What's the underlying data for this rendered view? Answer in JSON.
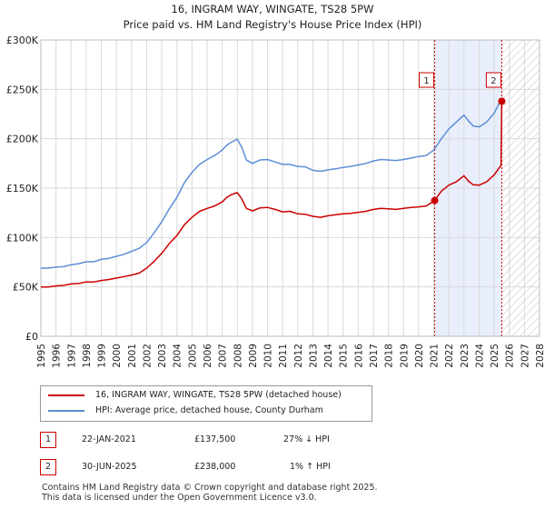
{
  "chart_data": {
    "type": "line",
    "title": "16, INGRAM WAY, WINGATE, TS28 5PW",
    "subtitle": "Price paid vs. HM Land Registry's House Price Index (HPI)",
    "xlabel": "",
    "ylabel": "",
    "xlim": [
      1995,
      2028
    ],
    "ylim": [
      0,
      300000
    ],
    "y_ticks": [
      0,
      50000,
      100000,
      150000,
      200000,
      250000,
      300000
    ],
    "y_tick_labels": [
      "£0",
      "£50K",
      "£100K",
      "£150K",
      "£200K",
      "£250K",
      "£300K"
    ],
    "x_tick_labels": [
      "1995",
      "1996",
      "1997",
      "1998",
      "1999",
      "2000",
      "2001",
      "2002",
      "2003",
      "2004",
      "2005",
      "2006",
      "2007",
      "2008",
      "2009",
      "2010",
      "2011",
      "2012",
      "2013",
      "2014",
      "2015",
      "2016",
      "2017",
      "2018",
      "2019",
      "2020",
      "2021",
      "2022",
      "2023",
      "2024",
      "2025",
      "2026",
      "2027",
      "2028"
    ],
    "grid": true,
    "shaded_period": [
      2021.06,
      2025.5
    ],
    "future_hatch_from": 2025.5,
    "series": [
      {
        "name": "16, INGRAM WAY, WINGATE, TS28 5PW (detached house)",
        "color": "#cc0000",
        "x": [
          1995,
          1995.5,
          1996,
          1996.5,
          1997,
          1997.5,
          1998,
          1998.5,
          1999,
          1999.5,
          2000,
          2000.5,
          2001,
          2001.5,
          2002,
          2002.5,
          2003,
          2003.5,
          2004,
          2004.5,
          2005,
          2005.5,
          2006,
          2006.5,
          2007,
          2007.3,
          2007.6,
          2008,
          2008.3,
          2008.6,
          2009,
          2009.5,
          2010,
          2010.5,
          2011,
          2011.5,
          2012,
          2012.5,
          2013,
          2013.5,
          2014,
          2014.5,
          2015,
          2015.5,
          2016,
          2016.5,
          2017,
          2017.5,
          2018,
          2018.5,
          2019,
          2019.5,
          2020,
          2020.5,
          2021.06,
          2021.5,
          2022,
          2022.5,
          2023,
          2023.3,
          2023.6,
          2024,
          2024.5,
          2025,
          2025.3,
          2025.45,
          2025.5
        ],
        "y": [
          50000,
          50000,
          51000,
          51500,
          53000,
          53500,
          55000,
          55000,
          56500,
          57500,
          59000,
          60500,
          62000,
          64000,
          69000,
          76000,
          84000,
          94000,
          102000,
          113000,
          120500,
          126500,
          129500,
          132000,
          136000,
          140500,
          143500,
          145500,
          139000,
          129500,
          127000,
          130000,
          130500,
          128500,
          126000,
          126500,
          124000,
          123500,
          121500,
          120500,
          122000,
          123000,
          124000,
          124500,
          125500,
          126500,
          128500,
          129500,
          129000,
          128500,
          129500,
          130500,
          131000,
          132000,
          137500,
          147000,
          153000,
          156500,
          162500,
          157000,
          153500,
          153000,
          156500,
          163500,
          170000,
          173000,
          238000
        ]
      },
      {
        "name": "HPI: Average price, detached house, County Durham",
        "color": "#5b8fd6",
        "x": [
          1995,
          1995.5,
          1996,
          1996.5,
          1997,
          1997.5,
          1998,
          1998.5,
          1999,
          1999.5,
          2000,
          2000.5,
          2001,
          2001.5,
          2002,
          2002.5,
          2003,
          2003.5,
          2004,
          2004.5,
          2005,
          2005.5,
          2006,
          2006.5,
          2007,
          2007.3,
          2007.6,
          2008,
          2008.3,
          2008.6,
          2009,
          2009.5,
          2010,
          2010.5,
          2011,
          2011.5,
          2012,
          2012.5,
          2013,
          2013.5,
          2014,
          2014.5,
          2015,
          2015.5,
          2016,
          2016.5,
          2017,
          2017.5,
          2018,
          2018.5,
          2019,
          2019.5,
          2020,
          2020.5,
          2021,
          2021.5,
          2022,
          2022.5,
          2023,
          2023.3,
          2023.6,
          2024,
          2024.5,
          2025,
          2025.3,
          2025.5
        ],
        "y": [
          69000,
          69000,
          70000,
          70500,
          72500,
          73500,
          75500,
          75500,
          78000,
          79000,
          81000,
          83000,
          86000,
          89000,
          95000,
          105000,
          116000,
          129000,
          140500,
          155500,
          166000,
          174000,
          179000,
          183000,
          188500,
          193500,
          196500,
          199500,
          191000,
          178500,
          175000,
          178500,
          179000,
          176500,
          174000,
          174000,
          172000,
          171500,
          168000,
          167000,
          168500,
          169500,
          171000,
          172000,
          173500,
          175000,
          177500,
          179000,
          178500,
          178000,
          179000,
          180500,
          182000,
          183000,
          188500,
          200000,
          210000,
          217000,
          224000,
          218000,
          213000,
          212000,
          217000,
          226000,
          235000,
          238000
        ]
      }
    ],
    "sales": [
      {
        "id": "1",
        "x": 2021.06,
        "y": 137500
      },
      {
        "id": "2",
        "x": 2025.5,
        "y": 238000
      }
    ]
  },
  "legend": {
    "items": [
      {
        "label": "16, INGRAM WAY, WINGATE, TS28 5PW (detached house)",
        "color": "#cc0000"
      },
      {
        "label": "HPI: Average price, detached house, County Durham",
        "color": "#5b8fd6"
      }
    ]
  },
  "sales_table": [
    {
      "num": "1",
      "date": "22-JAN-2021",
      "price": "£137,500",
      "hpi": "27% ↓ HPI"
    },
    {
      "num": "2",
      "date": "30-JUN-2025",
      "price": "£238,000",
      "hpi": "1% ↑ HPI"
    }
  ],
  "footer": {
    "line1": "Contains HM Land Registry data © Crown copyright and database right 2025.",
    "line2": "This data is licensed under the Open Government Licence v3.0."
  }
}
